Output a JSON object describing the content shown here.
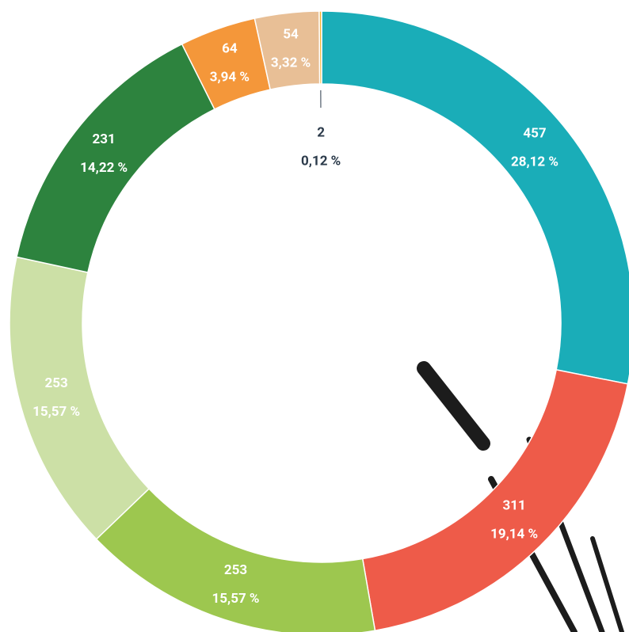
{
  "chart_data": {
    "type": "donut",
    "values": [
      457,
      311,
      253,
      253,
      231,
      64,
      54,
      2
    ],
    "percent": [
      28.12,
      19.14,
      15.57,
      15.57,
      14.22,
      3.94,
      3.32,
      0.12
    ],
    "percent_labels": [
      "28,12 %",
      "19,14 %",
      "15,57 %",
      "15,57 %",
      "14,22 %",
      "3,94 %",
      "3,32 %",
      "0,12 %"
    ],
    "colors": [
      "#1aadb8",
      "#ee5b49",
      "#9dc74f",
      "#cce0a6",
      "#2d833e",
      "#f4973a",
      "#e8bf96",
      "#f5b335"
    ]
  }
}
